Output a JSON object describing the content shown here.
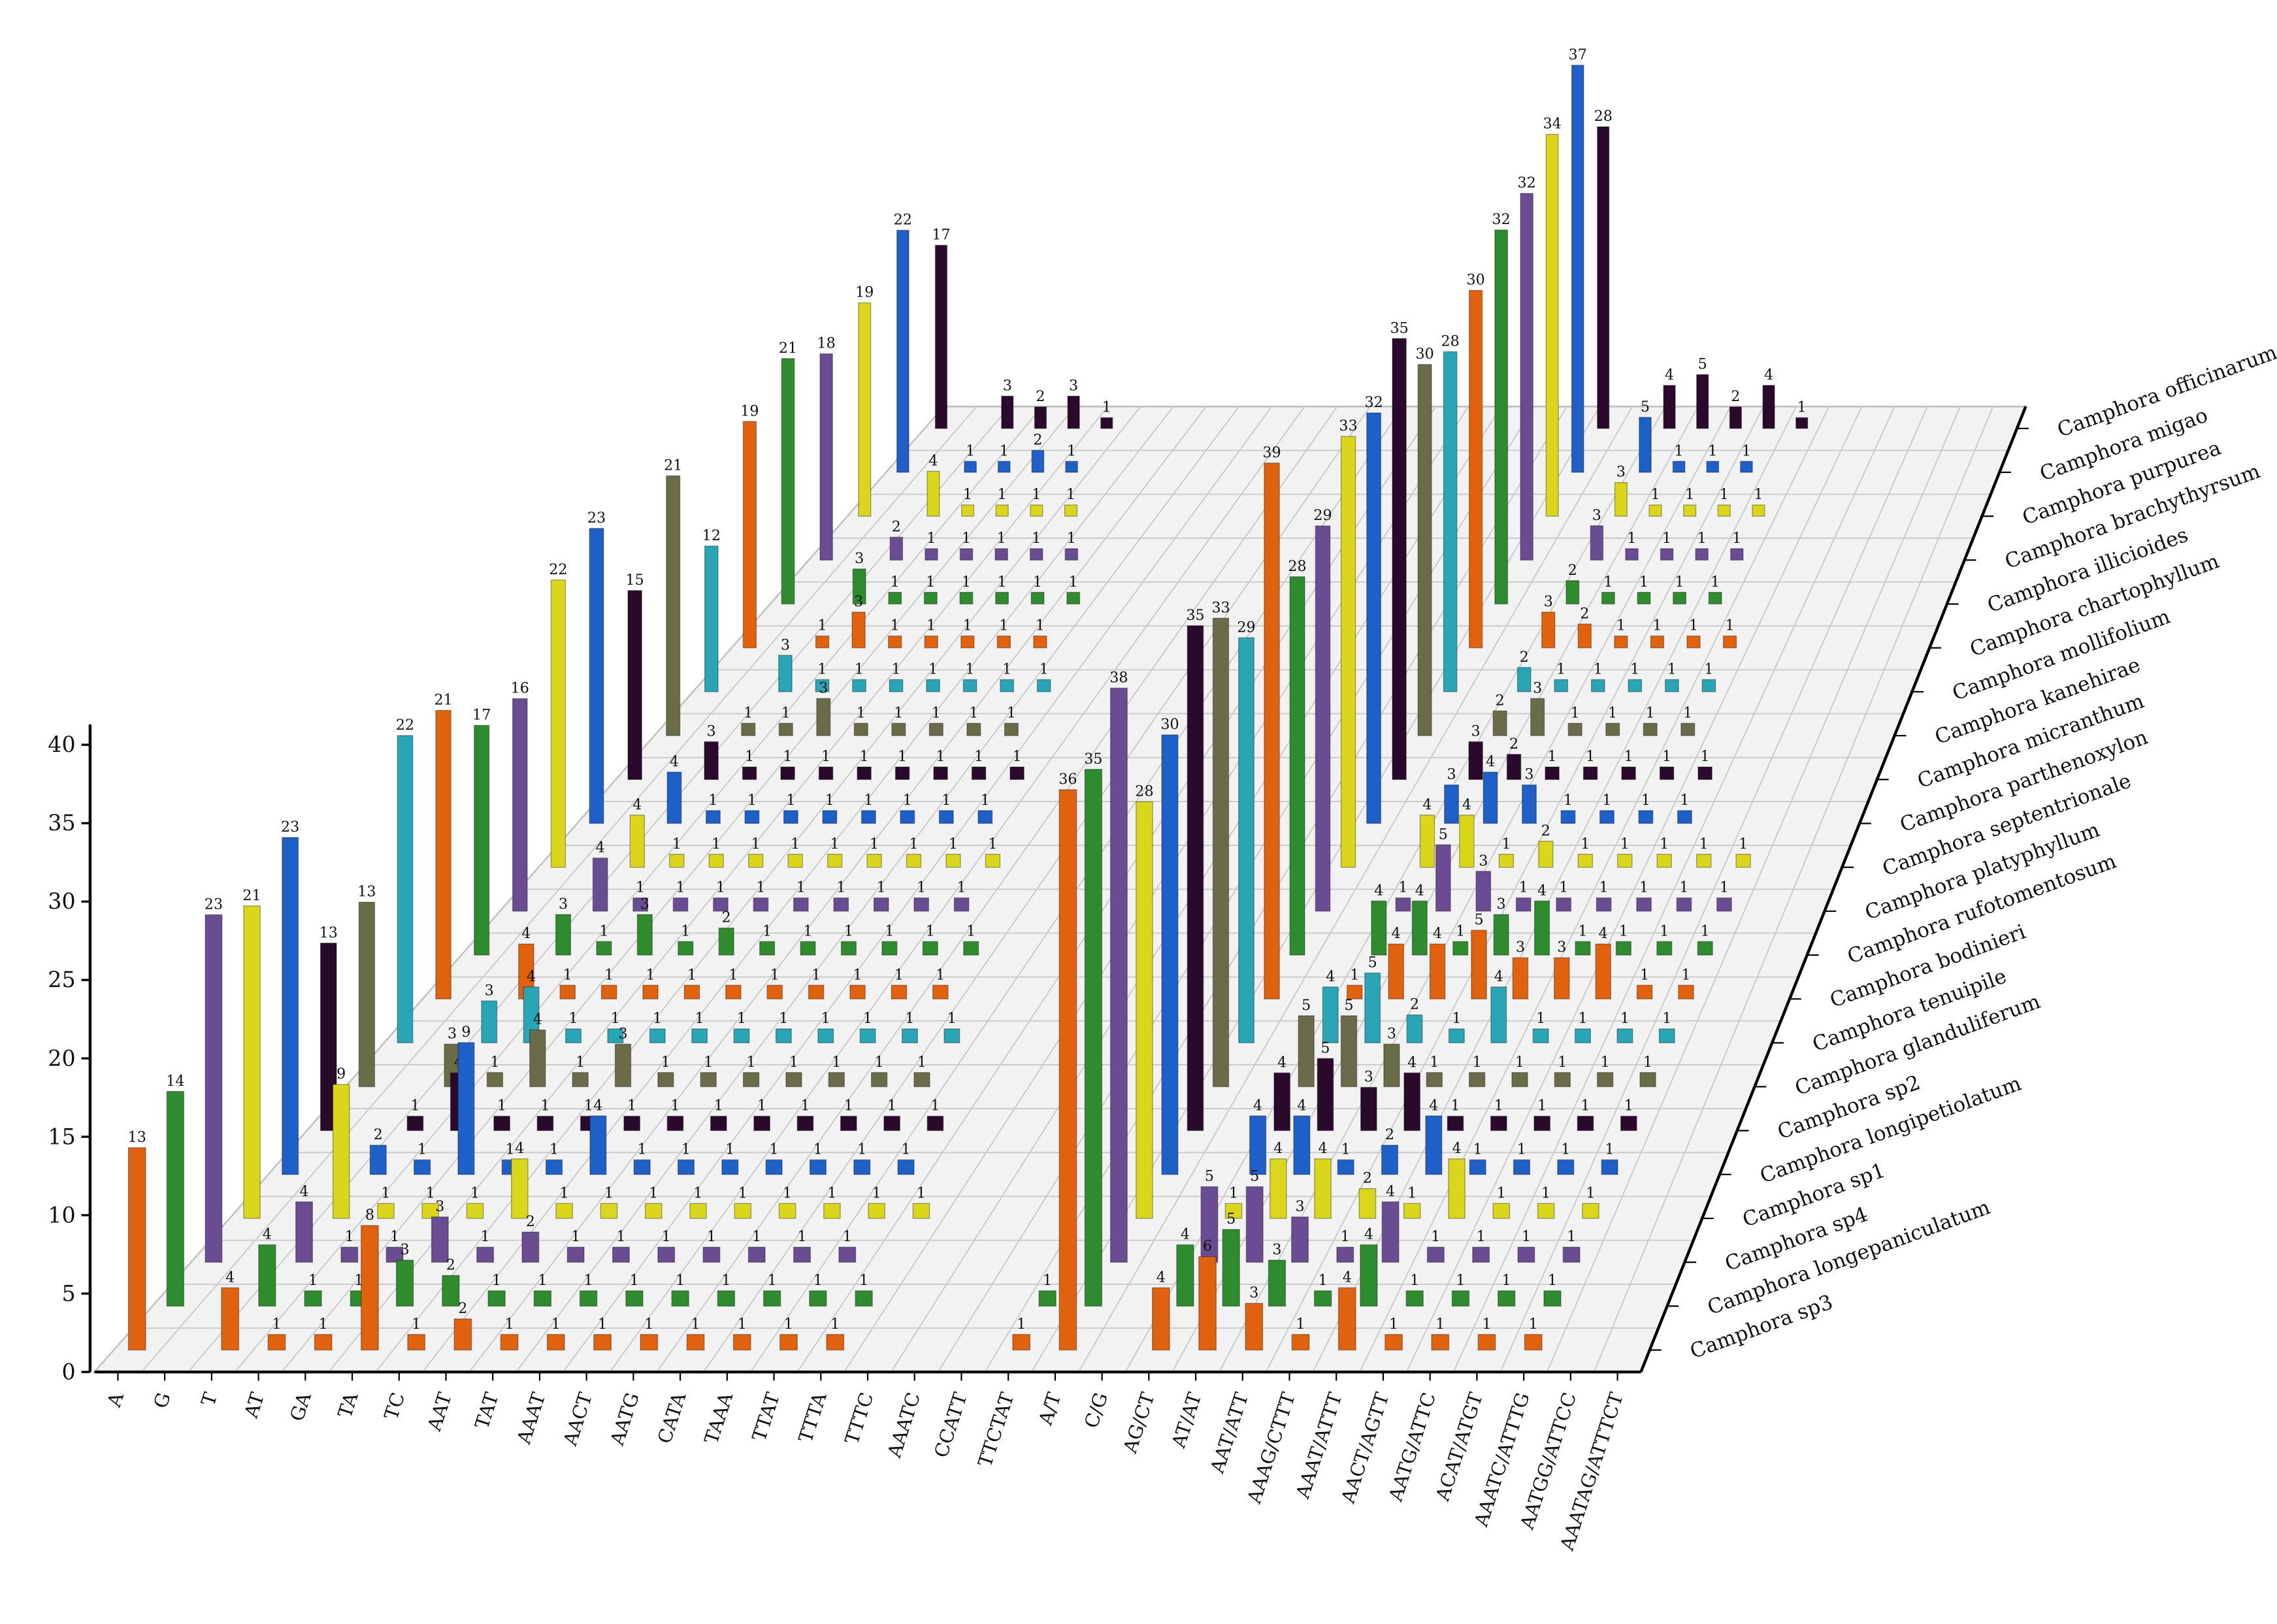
{
  "chart_data": {
    "type": "bar3d",
    "categories": [
      "A",
      "G",
      "T",
      "AT",
      "GA",
      "TA",
      "TC",
      "AAT",
      "TAT",
      "AAAT",
      "AACT",
      "AATG",
      "CATA",
      "TAAA",
      "TTAT",
      "TTTA",
      "TTTC",
      "AAATC",
      "CCATT",
      "TTCTAT",
      "A/T",
      "C/G",
      "AG/CT",
      "AT/AT",
      "AAT/ATT",
      "AAAG/CTTT",
      "AAAT/ATTT",
      "AACT/AGTT",
      "AATG/ATTC",
      "ACAT/ATGT",
      "AAATC/ATTTG",
      "AATGG/ATTCC",
      "AAATAG/ATTTCT"
    ],
    "ylim": [
      0,
      40
    ],
    "yticks": [
      0,
      5,
      10,
      15,
      20,
      25,
      30,
      35,
      40
    ],
    "series": [
      {
        "name": "Camphora sp3",
        "color": "#e0620f",
        "values": [
          13,
          null,
          4,
          1,
          1,
          8,
          1,
          2,
          1,
          1,
          1,
          1,
          1,
          1,
          1,
          1,
          null,
          null,
          null,
          1,
          36,
          null,
          4,
          6,
          3,
          1,
          4,
          1,
          1,
          1,
          1,
          null,
          null
        ]
      },
      {
        "name": "Camphora longepaniculatum",
        "color": "#2e8b2e",
        "values": [
          14,
          null,
          4,
          1,
          1,
          3,
          2,
          1,
          1,
          1,
          1,
          1,
          1,
          1,
          1,
          1,
          null,
          null,
          null,
          1,
          35,
          null,
          4,
          5,
          3,
          1,
          4,
          1,
          1,
          1,
          1,
          null,
          null
        ]
      },
      {
        "name": "Camphora sp4",
        "color": "#6a4c93",
        "values": [
          23,
          null,
          4,
          1,
          1,
          3,
          1,
          2,
          1,
          1,
          1,
          1,
          1,
          1,
          1,
          null,
          null,
          null,
          null,
          null,
          38,
          null,
          5,
          5,
          3,
          1,
          4,
          1,
          1,
          1,
          1,
          null,
          null
        ]
      },
      {
        "name": "Camphora sp1",
        "color": "#d9d61c",
        "values": [
          21,
          null,
          9,
          1,
          1,
          1,
          4,
          1,
          1,
          1,
          1,
          1,
          1,
          1,
          1,
          1,
          null,
          null,
          null,
          null,
          28,
          null,
          1,
          4,
          4,
          2,
          1,
          4,
          1,
          1,
          1,
          null,
          null
        ]
      },
      {
        "name": "Camphora longipetiolatum",
        "color": "#1f5fc8",
        "values": [
          23,
          null,
          2,
          1,
          9,
          1,
          1,
          4,
          1,
          1,
          1,
          1,
          1,
          1,
          1,
          null,
          null,
          null,
          null,
          null,
          30,
          null,
          4,
          4,
          1,
          2,
          4,
          1,
          1,
          1,
          1,
          null,
          null
        ]
      },
      {
        "name": "Camphora sp2",
        "color": "#2a0a2a",
        "values": [
          13,
          null,
          1,
          4,
          1,
          1,
          1,
          1,
          1,
          1,
          1,
          1,
          1,
          1,
          1,
          null,
          null,
          null,
          null,
          null,
          35,
          null,
          4,
          5,
          3,
          4,
          1,
          1,
          1,
          1,
          1,
          null,
          null
        ]
      },
      {
        "name": "Camphora glanduliferum",
        "color": "#6b6b4a",
        "values": [
          13,
          null,
          3,
          1,
          4,
          1,
          3,
          1,
          1,
          1,
          1,
          1,
          1,
          1,
          null,
          null,
          null,
          null,
          null,
          null,
          33,
          null,
          5,
          5,
          3,
          1,
          1,
          1,
          1,
          1,
          1,
          null,
          null
        ]
      },
      {
        "name": "Camphora tenuipile",
        "color": "#2aa5b5",
        "values": [
          22,
          null,
          3,
          4,
          1,
          1,
          1,
          1,
          1,
          1,
          1,
          1,
          1,
          1,
          null,
          null,
          null,
          null,
          null,
          null,
          29,
          null,
          4,
          5,
          2,
          1,
          4,
          1,
          1,
          1,
          1,
          null,
          null
        ]
      },
      {
        "name": "Camphora bodinieri",
        "color": "#e0620f",
        "values": [
          21,
          null,
          4,
          1,
          1,
          1,
          1,
          1,
          1,
          1,
          1,
          1,
          1,
          null,
          null,
          null,
          null,
          null,
          null,
          null,
          39,
          null,
          1,
          4,
          4,
          5,
          3,
          3,
          4,
          1,
          1,
          null,
          null
        ]
      },
      {
        "name": "Camphora rufotomentosum",
        "color": "#2e8b2e",
        "values": [
          17,
          null,
          3,
          1,
          3,
          1,
          2,
          1,
          1,
          1,
          1,
          1,
          1,
          null,
          null,
          null,
          null,
          null,
          null,
          null,
          28,
          null,
          4,
          4,
          1,
          3,
          4,
          1,
          1,
          1,
          1,
          null,
          null
        ]
      },
      {
        "name": "Camphora platyphyllum",
        "color": "#6a4c93",
        "values": [
          16,
          null,
          4,
          1,
          1,
          1,
          1,
          1,
          1,
          1,
          1,
          1,
          null,
          null,
          null,
          null,
          null,
          null,
          null,
          null,
          29,
          null,
          1,
          5,
          3,
          1,
          1,
          1,
          1,
          1,
          1,
          null,
          null
        ]
      },
      {
        "name": "Camphora septentrionale",
        "color": "#d9d61c",
        "values": [
          22,
          null,
          4,
          1,
          1,
          1,
          1,
          1,
          1,
          1,
          1,
          1,
          null,
          null,
          null,
          null,
          null,
          null,
          null,
          null,
          33,
          null,
          4,
          4,
          1,
          2,
          1,
          1,
          1,
          1,
          1,
          null,
          null
        ]
      },
      {
        "name": "Camphora parthenoxylon",
        "color": "#1f5fc8",
        "values": [
          23,
          null,
          4,
          1,
          1,
          1,
          1,
          1,
          1,
          1,
          1,
          null,
          null,
          null,
          null,
          null,
          null,
          null,
          null,
          null,
          32,
          null,
          3,
          4,
          3,
          1,
          1,
          1,
          1,
          null,
          null,
          null,
          null
        ]
      },
      {
        "name": "Camphora micranthum",
        "color": "#2a0a2a",
        "values": [
          15,
          null,
          3,
          1,
          1,
          1,
          1,
          1,
          1,
          1,
          1,
          null,
          null,
          null,
          null,
          null,
          null,
          null,
          null,
          null,
          35,
          null,
          3,
          2,
          1,
          1,
          1,
          1,
          1,
          null,
          null,
          null,
          null
        ]
      },
      {
        "name": "Camphora kanehirae",
        "color": "#6b6b4a",
        "values": [
          21,
          null,
          1,
          1,
          3,
          1,
          1,
          1,
          1,
          1,
          null,
          null,
          null,
          null,
          null,
          null,
          null,
          null,
          null,
          null,
          30,
          null,
          2,
          3,
          1,
          1,
          1,
          1,
          null,
          null,
          null,
          null,
          null
        ]
      },
      {
        "name": "Camphora mollifolium",
        "color": "#2aa5b5",
        "values": [
          12,
          null,
          3,
          1,
          1,
          1,
          1,
          1,
          1,
          1,
          null,
          null,
          null,
          null,
          null,
          null,
          null,
          null,
          null,
          null,
          28,
          null,
          2,
          1,
          1,
          1,
          1,
          1,
          null,
          null,
          null,
          null,
          null
        ]
      },
      {
        "name": "Camphora chartophyllum",
        "color": "#e0620f",
        "values": [
          19,
          null,
          1,
          3,
          1,
          1,
          1,
          1,
          1,
          null,
          null,
          null,
          null,
          null,
          null,
          null,
          null,
          null,
          null,
          null,
          30,
          null,
          3,
          2,
          1,
          1,
          1,
          1,
          null,
          null,
          null,
          null,
          null
        ]
      },
      {
        "name": "Camphora illicioides",
        "color": "#2e8b2e",
        "values": [
          21,
          null,
          3,
          1,
          1,
          1,
          1,
          1,
          1,
          null,
          null,
          null,
          null,
          null,
          null,
          null,
          null,
          null,
          null,
          null,
          32,
          null,
          2,
          1,
          1,
          1,
          1,
          null,
          null,
          null,
          null,
          null,
          null
        ]
      },
      {
        "name": "Camphora brachythyrsum",
        "color": "#6a4c93",
        "values": [
          18,
          null,
          2,
          1,
          1,
          1,
          1,
          1,
          null,
          null,
          null,
          null,
          null,
          null,
          null,
          null,
          null,
          null,
          null,
          null,
          32,
          null,
          3,
          1,
          1,
          1,
          1,
          null,
          null,
          null,
          null,
          null,
          null
        ]
      },
      {
        "name": "Camphora purpurea",
        "color": "#d9d61c",
        "values": [
          19,
          null,
          4,
          1,
          1,
          1,
          1,
          null,
          null,
          null,
          null,
          null,
          null,
          null,
          null,
          null,
          null,
          null,
          null,
          null,
          34,
          null,
          3,
          1,
          1,
          1,
          1,
          null,
          null,
          null,
          null,
          null,
          null
        ]
      },
      {
        "name": "Camphora migao",
        "color": "#1f5fc8",
        "values": [
          22,
          null,
          1,
          1,
          2,
          1,
          null,
          null,
          null,
          null,
          null,
          null,
          null,
          null,
          null,
          null,
          null,
          null,
          null,
          null,
          37,
          null,
          5,
          1,
          1,
          1,
          null,
          null,
          null,
          null,
          null,
          null,
          null
        ]
      },
      {
        "name": "Camphora officinarum",
        "color": "#2a0a2a",
        "values": [
          17,
          null,
          3,
          2,
          3,
          1,
          null,
          null,
          null,
          null,
          null,
          null,
          null,
          null,
          null,
          null,
          null,
          null,
          null,
          null,
          28,
          null,
          4,
          5,
          2,
          4,
          1,
          null,
          null,
          null,
          null,
          null,
          null
        ]
      }
    ]
  }
}
